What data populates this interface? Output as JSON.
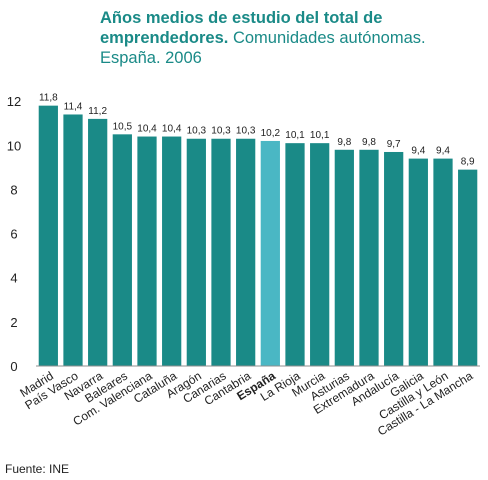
{
  "title": {
    "bold": "Años medios de estudio del total de emprendedores.",
    "rest": "Comunidades autónomas. España. 2006"
  },
  "source": "Fuente: INE",
  "colors": {
    "bar": "#1a8a87",
    "highlight": "#4ab7c4",
    "axis": "#8f8f8f",
    "title": "#1a8a87"
  },
  "chart_data": {
    "type": "bar",
    "categories": [
      "Madrid",
      "País Vasco",
      "Navarra",
      "Baleares",
      "Com. Valenciana",
      "Cataluña",
      "Aragón",
      "Canarias",
      "Cantabria",
      "España",
      "La Rioja",
      "Murcia",
      "Asturias",
      "Extremadura",
      "Andalucía",
      "Galicia",
      "Castilla y León",
      "Castilla - La Mancha"
    ],
    "values": [
      11.8,
      11.4,
      11.2,
      10.5,
      10.4,
      10.4,
      10.3,
      10.3,
      10.3,
      10.2,
      10.1,
      10.1,
      9.8,
      9.8,
      9.7,
      9.4,
      9.4,
      8.9
    ],
    "value_labels": [
      "11,8",
      "11,4",
      "11,2",
      "10,5",
      "10,4",
      "10,4",
      "10,3",
      "10,3",
      "10,3",
      "10,2",
      "10,1",
      "10,1",
      "9,8",
      "9,8",
      "9,7",
      "9,4",
      "9,4",
      "8,9"
    ],
    "highlight_category": "España",
    "yticks": [
      0,
      2,
      4,
      6,
      8,
      10,
      12
    ],
    "ylim": [
      0,
      12.6
    ],
    "grid": false
  }
}
